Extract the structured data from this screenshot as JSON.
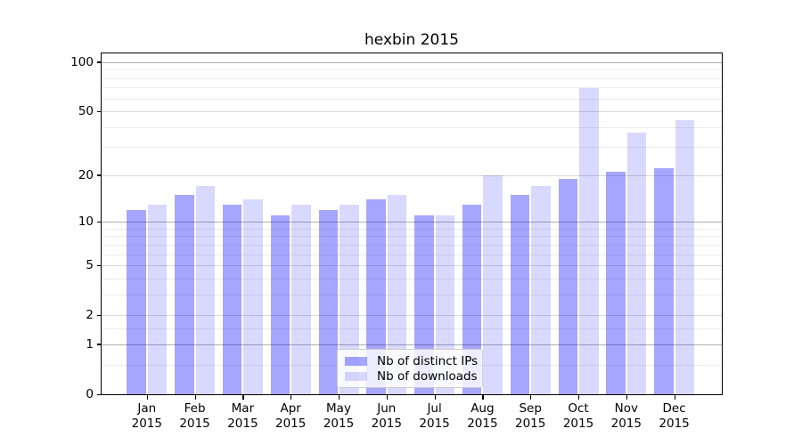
{
  "figure": {
    "background": "#ffffff"
  },
  "chart_data": {
    "type": "bar",
    "title": "hexbin 2015",
    "categories": [
      "Jan",
      "Feb",
      "Mar",
      "Apr",
      "May",
      "Jun",
      "Jul",
      "Aug",
      "Sep",
      "Oct",
      "Nov",
      "Dec"
    ],
    "category_year": "2015",
    "series": [
      {
        "name": "Nb of distinct IPs",
        "color_hex": "#a6a6ff",
        "color_css": "rgba(0,0,255,0.35)",
        "values": [
          12,
          15,
          13,
          11,
          12,
          14,
          11,
          13,
          15,
          19,
          21,
          22
        ]
      },
      {
        "name": "Nb of downloads",
        "color_hex": "#d9d9ff",
        "color_css": "rgba(0,0,255,0.15)",
        "values": [
          13,
          17,
          14,
          13,
          13,
          15,
          11,
          20,
          17,
          69,
          37,
          44
        ]
      }
    ],
    "y_axis": {
      "scale": "log10(value+1)",
      "range": [
        0,
        100
      ],
      "tick_values": [
        100,
        50,
        20,
        10,
        5,
        2,
        1,
        0
      ],
      "tick_labels": [
        "100",
        "50",
        "20",
        "10",
        "5",
        "2",
        "1",
        "0"
      ],
      "grid_strong_values": [
        1,
        10,
        100
      ],
      "grid_mid_values": [
        2,
        5,
        20,
        50
      ],
      "grid_minor_values": [
        0.5,
        1.5,
        3,
        4,
        6,
        7,
        8,
        9,
        30,
        40,
        60,
        70,
        80,
        90
      ],
      "grid": "on"
    },
    "x_axis": {
      "tick_labels": [
        "Jan 2015",
        "Feb 2015",
        "Mar 2015",
        "Apr 2015",
        "May 2015",
        "Jun 2015",
        "Jul 2015",
        "Aug 2015",
        "Sep 2015",
        "Oct 2015",
        "Nov 2015",
        "Dec 2015"
      ]
    },
    "legend": {
      "position": "lower center"
    }
  },
  "colors": {
    "spine": "#000000",
    "grid_strong": "#b0b0b0",
    "grid_mid": "#d9d9d9",
    "grid_minor": "#ececec",
    "legend_border": "#cccccc"
  }
}
